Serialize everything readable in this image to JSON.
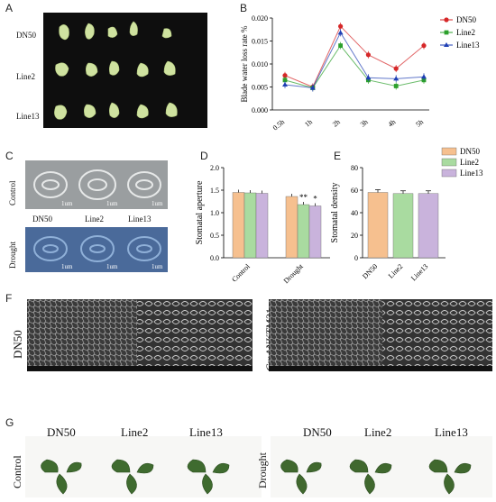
{
  "panels": {
    "A": {
      "letter": "A",
      "rows": [
        "DN50",
        "Line2",
        "Line13"
      ]
    },
    "B": {
      "letter": "B",
      "chart_data": {
        "type": "line",
        "ylabel": "Blade water loss rate %",
        "x": [
          "0.5h",
          "1h",
          "2h",
          "3h",
          "4h",
          "5h"
        ],
        "ylim": [
          0,
          0.02
        ],
        "yticks": [
          "0.000",
          "0.005",
          "0.010",
          "0.015",
          "0.020"
        ],
        "series": [
          {
            "name": "DN50",
            "color": "#d62728",
            "values": [
              0.0075,
              0.005,
              0.0182,
              0.012,
              0.009,
              0.014
            ]
          },
          {
            "name": "Line2",
            "color": "#2ca02c",
            "values": [
              0.0065,
              0.0048,
              0.014,
              0.0065,
              0.0052,
              0.0065
            ]
          },
          {
            "name": "Line13",
            "color": "#1f3fb4",
            "values": [
              0.0055,
              0.0048,
              0.0168,
              0.007,
              0.0068,
              0.0072
            ]
          }
        ]
      }
    },
    "C": {
      "letter": "C",
      "rows": [
        "Control",
        "Drought"
      ],
      "columns": [
        "DN50",
        "Line2",
        "Line13"
      ],
      "scale": "1um"
    },
    "D": {
      "letter": "D",
      "chart_data": {
        "type": "bar",
        "ylabel": "Stomatal aperture",
        "categories": [
          "Control",
          "Drought"
        ],
        "ylim": [
          0,
          2.0
        ],
        "yticks": [
          "0.0",
          "0.5",
          "1.0",
          "1.5",
          "2.0"
        ],
        "series": [
          {
            "name": "DN50",
            "color": "#f6c08f",
            "values": [
              1.45,
              1.36
            ]
          },
          {
            "name": "Line2",
            "color": "#a9dba0",
            "values": [
              1.44,
              1.18
            ]
          },
          {
            "name": "Line13",
            "color": "#c9b3dc",
            "values": [
              1.43,
              1.15
            ]
          }
        ],
        "annotations": [
          "**",
          "*"
        ]
      }
    },
    "E": {
      "letter": "E",
      "chart_data": {
        "type": "bar",
        "ylabel": "Stomatal density",
        "categories": [
          "DN50",
          "Line2",
          "Line13"
        ],
        "ylim": [
          0,
          80
        ],
        "yticks": [
          "0",
          "20",
          "40",
          "60",
          "80"
        ],
        "values": [
          58,
          57,
          57
        ],
        "colors": [
          "#f6c08f",
          "#a9dba0",
          "#c9b3dc"
        ],
        "legend": [
          "DN50",
          "Line2",
          "Line13"
        ],
        "legend_position": "top"
      }
    },
    "F": {
      "letter": "F",
      "left_label": "DN50",
      "right_label": "GmANKTM21"
    },
    "G": {
      "letter": "G",
      "left_row": "Control",
      "right_row": "Drought",
      "columns": [
        "DN50",
        "Line2",
        "Line13"
      ]
    }
  }
}
